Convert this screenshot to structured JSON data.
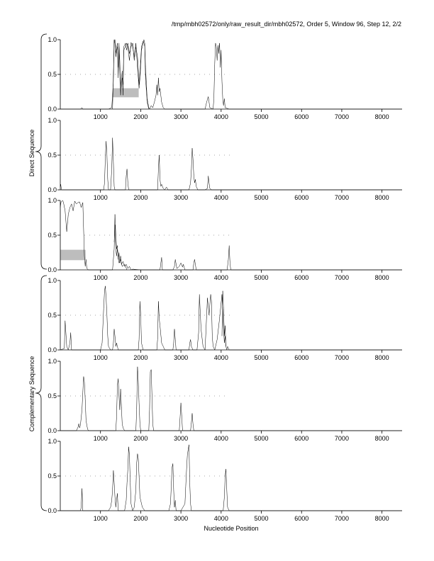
{
  "chart_data": {
    "type": "line",
    "title": "/tmp/mbh02572/only/raw_result_dir/mbh02572, Order 5, Window 96, Step 12, 2/2",
    "xlabel": "Nucleotide Position",
    "group_labels": [
      "Direct Sequence",
      "Complementary Sequence"
    ],
    "xlim": [
      0,
      8500
    ],
    "ylim": [
      0,
      1.0
    ],
    "x_ticks": [
      "1000",
      "2000",
      "3000",
      "4000",
      "5000",
      "6000",
      "7000",
      "8000"
    ],
    "y_ticks": [
      "0.0",
      "0.5",
      "1.0"
    ],
    "grid": false,
    "panels": [
      {
        "dashes": [
          [
            0,
            4200
          ]
        ],
        "bars": [
          [
            1300,
            1950,
            0.17,
            0.3
          ]
        ],
        "x": [
          0,
          500,
          540,
          560,
          600,
          1200,
          1280,
          1320,
          1340,
          1360,
          1380,
          1420,
          1440,
          1460,
          1480,
          1500,
          1540,
          1560,
          1580,
          1620,
          1650,
          1680,
          1720,
          1760,
          1800,
          1840,
          1880,
          1920,
          1960,
          1990,
          2020,
          2060,
          2080,
          2100,
          2120,
          2160,
          2200,
          2220,
          2260,
          2300,
          2340,
          2380,
          2400,
          2420,
          2440,
          2460,
          2480,
          2520,
          2560,
          2600,
          2700,
          3600,
          3640,
          3680,
          3720,
          3800,
          3820,
          3840,
          3860,
          3880,
          3900,
          3920,
          3940,
          3960,
          3980,
          4000,
          4020,
          4040,
          4060,
          4080,
          4100,
          4200,
          8500
        ],
        "y": [
          0,
          0,
          0.02,
          0.0,
          0,
          0,
          0.02,
          0.4,
          0.99,
          1.0,
          0.8,
          0.95,
          0.45,
          0.9,
          0.7,
          0.3,
          0.55,
          0.2,
          0.85,
          0.9,
          0.95,
          0.9,
          0.7,
          0.96,
          0.9,
          0.75,
          0.95,
          0.6,
          0.3,
          0.5,
          0.85,
          0.95,
          1.0,
          0.95,
          0.6,
          0.15,
          0.02,
          0.0,
          0.05,
          0.02,
          0.1,
          0.2,
          0.35,
          0.2,
          0.45,
          0.25,
          0.3,
          0.1,
          0.02,
          0.0,
          0,
          0,
          0.1,
          0.18,
          0.02,
          0.0,
          0.15,
          0.65,
          0.95,
          0.9,
          0.7,
          0.92,
          0.8,
          0.95,
          0.6,
          0.85,
          0.4,
          0.15,
          0.05,
          0.15,
          0.02,
          0.0,
          0
        ],
        "x2": [
          1300,
          1320,
          1340,
          1360,
          1380,
          1420,
          1440,
          1460,
          1480,
          1500,
          1540,
          1560,
          1580,
          1620,
          1650,
          1680,
          1720,
          1760,
          1800,
          1840,
          1880,
          1920,
          1960,
          1990,
          2020,
          2060,
          2080,
          2100,
          2120,
          2160,
          2200
        ],
        "y2": [
          0.0,
          0.5,
          1.0,
          0.95,
          0.75,
          0.9,
          0.6,
          0.95,
          0.55,
          0.2,
          0.45,
          0.35,
          0.9,
          0.95,
          0.85,
          0.95,
          0.8,
          0.9,
          0.95,
          0.7,
          0.9,
          0.75,
          0.35,
          0.6,
          0.9,
          0.98,
          0.95,
          0.9,
          0.45,
          0.1,
          0.0
        ]
      },
      {
        "dashes": [
          [
            0,
            4250
          ]
        ],
        "bars": [],
        "x": [
          0,
          10,
          30,
          50,
          1080,
          1100,
          1120,
          1140,
          1160,
          1180,
          1200,
          1250,
          1280,
          1300,
          1320,
          1340,
          1360,
          1620,
          1640,
          1660,
          1680,
          1700,
          2420,
          2440,
          2460,
          2480,
          2500,
          2520,
          2560,
          2600,
          2640,
          2680,
          3200,
          3240,
          3260,
          3280,
          3300,
          3320,
          3340,
          3360,
          3380,
          3420,
          3600,
          3660,
          3680,
          3700,
          3720,
          3760,
          8500
        ],
        "y": [
          0.05,
          0.08,
          0.0,
          0,
          0,
          0.1,
          0.45,
          0.7,
          0.5,
          0.15,
          0.0,
          0,
          0.3,
          0.75,
          0.4,
          0.05,
          0.0,
          0,
          0.2,
          0.3,
          0.1,
          0.0,
          0,
          0.3,
          0.5,
          0.15,
          0.05,
          0.08,
          0.02,
          0.0,
          0.04,
          0.0,
          0,
          0.1,
          0.3,
          0.6,
          0.45,
          0.2,
          0.1,
          0.15,
          0.05,
          0.0,
          0,
          0.02,
          0.2,
          0.1,
          0.02,
          0.0,
          0
        ]
      },
      {
        "dashes": [
          [
            600,
            4250
          ]
        ],
        "bars": [
          [
            0,
            630,
            0.14,
            0.29
          ]
        ],
        "x": [
          0,
          20,
          40,
          60,
          80,
          120,
          160,
          200,
          240,
          280,
          320,
          360,
          400,
          440,
          480,
          520,
          560,
          600,
          620,
          640,
          660,
          700,
          760,
          1300,
          1340,
          1360,
          1380,
          1400,
          1420,
          1440,
          1460,
          1480,
          1500,
          1520,
          1560,
          1600,
          1640,
          1680,
          1720,
          1760,
          1800,
          2000,
          2480,
          2500,
          2520,
          2540,
          2800,
          2840,
          2860,
          2900,
          2960,
          3000,
          3040,
          3060,
          3100,
          3300,
          3320,
          3340,
          3380,
          4150,
          4180,
          4200,
          4220,
          4240,
          8500
        ],
        "y": [
          0.9,
          0.98,
          0.99,
          1.0,
          0.97,
          0.85,
          0.55,
          0.8,
          0.9,
          0.95,
          0.85,
          0.99,
          0.95,
          0.97,
          0.98,
          0.9,
          0.97,
          0.2,
          0.05,
          0.15,
          0.02,
          0.0,
          0,
          0,
          0.3,
          0.8,
          0.5,
          0.3,
          0.35,
          0.15,
          0.25,
          0.1,
          0.2,
          0.08,
          0.12,
          0.05,
          0.08,
          0.02,
          0.05,
          0.0,
          0.01,
          0,
          0,
          0.1,
          0.18,
          0.0,
          0,
          0.05,
          0.15,
          0.02,
          0.05,
          0.1,
          0.04,
          0.08,
          0.0,
          0,
          0.1,
          0.15,
          0.0,
          0,
          0.15,
          0.35,
          0.1,
          0.0,
          0
        ],
        "x2": [
          1340,
          1360,
          1380,
          1400,
          1420,
          1460,
          1500,
          1540,
          1600,
          1660
        ],
        "y2": [
          0.4,
          0.65,
          0.3,
          0.2,
          0.3,
          0.1,
          0.15,
          0.05,
          0.08,
          0.0
        ]
      },
      {
        "dashes": [
          [
            0,
            4250
          ]
        ],
        "bars": [],
        "x": [
          0,
          100,
          120,
          140,
          160,
          200,
          240,
          260,
          280,
          1000,
          1040,
          1080,
          1100,
          1120,
          1140,
          1160,
          1180,
          1200,
          1250,
          1300,
          1320,
          1340,
          1360,
          1380,
          1400,
          1440,
          1940,
          1960,
          1980,
          2000,
          2020,
          2040,
          2060,
          2400,
          2420,
          2440,
          2460,
          2480,
          2520,
          2560,
          2600,
          2800,
          2820,
          2840,
          2860,
          2880,
          3200,
          3220,
          3240,
          3260,
          3300,
          3400,
          3440,
          3460,
          3500,
          3550,
          3600,
          3620,
          3660,
          3700,
          3720,
          3740,
          3760,
          3780,
          3800,
          3840,
          3900,
          3960,
          4020,
          4060,
          4080,
          4100,
          4120,
          4140,
          4160,
          4200,
          8500
        ],
        "y": [
          0,
          0.02,
          0.42,
          0.25,
          0.05,
          0.0,
          0.1,
          0.25,
          0.0,
          0,
          0.1,
          0.6,
          0.85,
          0.92,
          0.75,
          0.5,
          0.2,
          0.05,
          0.0,
          0,
          0.1,
          0.3,
          0.2,
          0.05,
          0.1,
          0.0,
          0,
          0.15,
          0.7,
          0.5,
          0.1,
          0.05,
          0.0,
          0,
          0.15,
          0.7,
          0.45,
          0.35,
          0.1,
          0.05,
          0.0,
          0,
          0.1,
          0.3,
          0.15,
          0.0,
          0,
          0.1,
          0.15,
          0.05,
          0.0,
          0,
          0.25,
          0.8,
          0.3,
          0.05,
          0.0,
          0.25,
          0.75,
          0.5,
          0.65,
          0.8,
          0.7,
          0.2,
          0.05,
          0.0,
          0.15,
          0.45,
          0.8,
          0.3,
          0.1,
          0.2,
          0.05,
          0.0,
          0.05,
          0.0,
          0
        ],
        "x2": [
          4020,
          4040,
          4060,
          4080,
          4100,
          4120
        ],
        "y2": [
          0.2,
          0.85,
          0.6,
          0.2,
          0.35,
          0.05
        ]
      },
      {
        "dashes": [
          [
            0,
            4150
          ]
        ],
        "bars": [],
        "x": [
          0,
          400,
          440,
          460,
          480,
          500,
          540,
          560,
          580,
          600,
          620,
          640,
          660,
          680,
          700,
          1380,
          1400,
          1420,
          1440,
          1460,
          1480,
          1500,
          1520,
          1540,
          1560,
          1600,
          1880,
          1900,
          1920,
          1940,
          1960,
          1980,
          2000,
          2200,
          2220,
          2240,
          2260,
          2280,
          2300,
          2320,
          2960,
          2980,
          3000,
          3020,
          3040,
          3240,
          3260,
          3280,
          3300,
          3320,
          8500
        ],
        "y": [
          0,
          0,
          0.05,
          0.1,
          0.04,
          0.08,
          0.3,
          0.55,
          0.78,
          0.7,
          0.45,
          0.15,
          0.08,
          0.02,
          0.0,
          0,
          0.2,
          0.65,
          0.75,
          0.5,
          0.3,
          0.6,
          0.35,
          0.1,
          0.04,
          0.0,
          0,
          0.3,
          0.92,
          0.7,
          0.4,
          0.1,
          0.0,
          0,
          0.3,
          0.85,
          0.88,
          0.5,
          0.1,
          0.0,
          0,
          0.2,
          0.4,
          0.2,
          0.0,
          0,
          0.12,
          0.25,
          0.1,
          0.0,
          0
        ]
      },
      {
        "dashes": [
          [
            0,
            4200
          ]
        ],
        "bars": [],
        "x": [
          0,
          500,
          520,
          540,
          560,
          1200,
          1250,
          1280,
          1300,
          1320,
          1340,
          1360,
          1380,
          1400,
          1420,
          1440,
          1600,
          1640,
          1660,
          1680,
          1700,
          1720,
          1740,
          1760,
          1800,
          1840,
          1880,
          1900,
          1920,
          1940,
          1960,
          1980,
          2000,
          2040,
          2100,
          2700,
          2740,
          2760,
          2780,
          2800,
          2820,
          2840,
          2860,
          2880,
          3000,
          3100,
          3120,
          3140,
          3160,
          3180,
          3200,
          3220,
          3240,
          3260,
          4050,
          4080,
          4100,
          4120,
          4140,
          4160,
          4200,
          8500
        ],
        "y": [
          0,
          0,
          0.05,
          0.32,
          0.0,
          0,
          0.05,
          0.15,
          0.3,
          0.58,
          0.4,
          0.2,
          0.05,
          0.15,
          0.25,
          0.0,
          0,
          0.15,
          0.4,
          0.6,
          0.92,
          0.8,
          0.4,
          0.1,
          0.0,
          0.05,
          0.3,
          0.68,
          0.82,
          0.75,
          0.5,
          0.2,
          0.15,
          0.05,
          0.0,
          0,
          0.1,
          0.35,
          0.62,
          0.68,
          0.3,
          0.05,
          0.15,
          0.0,
          0,
          0.1,
          0.35,
          0.6,
          0.8,
          0.88,
          0.95,
          0.4,
          0.1,
          0.0,
          0,
          0.2,
          0.5,
          0.6,
          0.3,
          0.05,
          0.0,
          0
        ]
      }
    ]
  }
}
